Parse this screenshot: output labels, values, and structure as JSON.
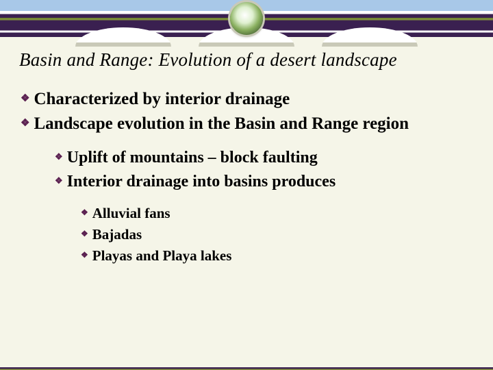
{
  "colors": {
    "background": "#f5f5e8",
    "bullet_diamond": "#5a2050",
    "banner_sky": "#a8c8e8",
    "banner_dark": "#3a2050",
    "banner_olive": "#8a9840",
    "text": "#000000"
  },
  "typography": {
    "family": "Times New Roman",
    "title_size_pt": 27,
    "title_style": "italic",
    "lvl1_size_pt": 25,
    "lvl2_size_pt": 24,
    "lvl3_size_pt": 21,
    "body_weight": "bold"
  },
  "title": "Basin and Range: Evolution of a desert landscape",
  "bullets": {
    "lvl1": [
      "Characterized by interior drainage",
      "Landscape evolution in the Basin and Range region"
    ],
    "lvl2": [
      "Uplift of mountains – block faulting",
      "Interior drainage into basins produces"
    ],
    "lvl3": [
      "Alluvial fans",
      "Bajadas",
      "Playas and Playa lakes"
    ]
  },
  "bullet_glyph": "❖"
}
